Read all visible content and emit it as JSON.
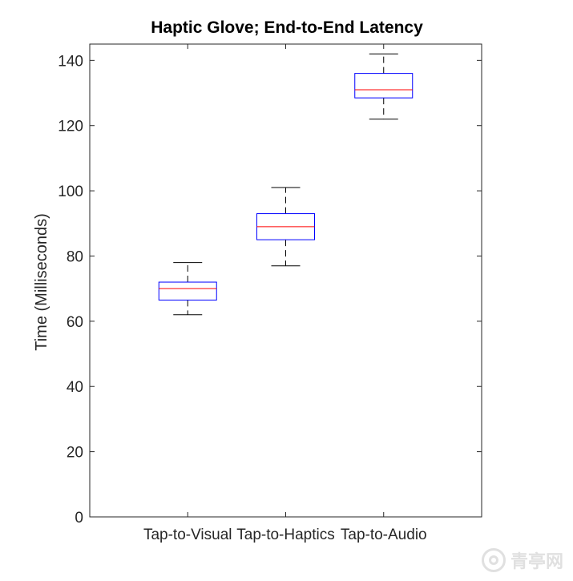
{
  "chart_data": {
    "type": "boxplot",
    "title": "Haptic Glove; End-to-End Latency",
    "xlabel": "",
    "ylabel": "Time (Milliseconds)",
    "ylim": [
      0,
      145
    ],
    "yticks": [
      0,
      20,
      40,
      60,
      80,
      100,
      120,
      140
    ],
    "categories": [
      "Tap-to-Visual",
      "Tap-to-Haptics",
      "Tap-to-Audio"
    ],
    "boxes": [
      {
        "category": "Tap-to-Visual",
        "min": 62,
        "q1": 66.5,
        "median": 70,
        "q3": 72,
        "max": 78
      },
      {
        "category": "Tap-to-Haptics",
        "min": 77,
        "q1": 85,
        "median": 89,
        "q3": 93,
        "max": 101
      },
      {
        "category": "Tap-to-Audio",
        "min": 122,
        "q1": 128.5,
        "median": 131,
        "q3": 136,
        "max": 142
      }
    ],
    "grid": false,
    "colors": {
      "box": "#0000ff",
      "median": "#ff0000",
      "whisker": "#000000"
    }
  },
  "watermark": {
    "text": "青亭网"
  }
}
